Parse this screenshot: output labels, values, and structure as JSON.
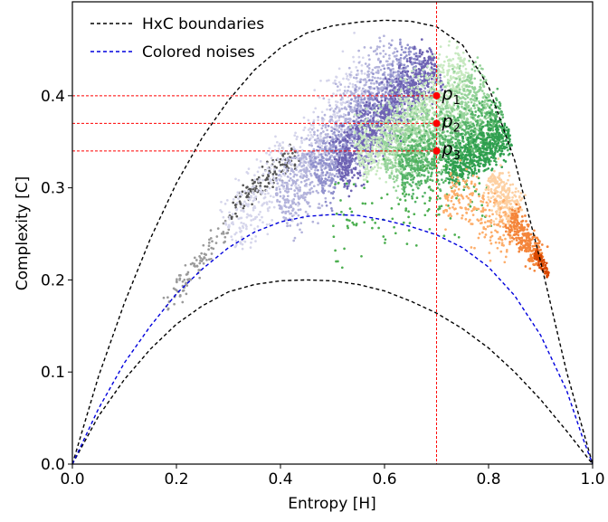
{
  "chart_data": {
    "type": "scatter",
    "title": "",
    "xlabel": "Entropy [H]",
    "ylabel": "Complexity [C]",
    "xlim": [
      0.0,
      1.0
    ],
    "ylim": [
      0.0,
      0.5
    ],
    "xticks": [
      0.0,
      0.2,
      0.4,
      0.6,
      0.8,
      1.0
    ],
    "yticks": [
      0.0,
      0.1,
      0.2,
      0.3,
      0.4
    ],
    "xtick_labels": [
      "0.0",
      "0.2",
      "0.4",
      "0.6",
      "0.8",
      "1.0"
    ],
    "ytick_labels": [
      "0.0",
      "0.1",
      "0.2",
      "0.3",
      "0.4"
    ],
    "grid": false,
    "legend": {
      "placement": "top-left",
      "entries": [
        {
          "label": "HxC boundaries",
          "color": "#000000",
          "style": "dashed"
        },
        {
          "label": "Colored noises",
          "color": "#0000dd",
          "style": "dashed"
        }
      ]
    },
    "upper_boundary": {
      "x": [
        0.0,
        0.05,
        0.1,
        0.15,
        0.2,
        0.25,
        0.3,
        0.35,
        0.4,
        0.45,
        0.5,
        0.55,
        0.6,
        0.65,
        0.7,
        0.75,
        0.8,
        0.85,
        0.9,
        0.95,
        0.98,
        1.0
      ],
      "y": [
        0.0,
        0.095,
        0.175,
        0.245,
        0.305,
        0.355,
        0.395,
        0.428,
        0.452,
        0.468,
        0.476,
        0.48,
        0.482,
        0.481,
        0.475,
        0.455,
        0.41,
        0.33,
        0.22,
        0.1,
        0.04,
        0.0
      ]
    },
    "lower_boundary": {
      "x": [
        0.0,
        0.05,
        0.1,
        0.15,
        0.2,
        0.25,
        0.3,
        0.35,
        0.4,
        0.45,
        0.5,
        0.55,
        0.6,
        0.65,
        0.7,
        0.75,
        0.8,
        0.85,
        0.9,
        0.95,
        1.0
      ],
      "y": [
        0.0,
        0.052,
        0.092,
        0.125,
        0.152,
        0.172,
        0.187,
        0.195,
        0.199,
        0.2,
        0.199,
        0.195,
        0.188,
        0.177,
        0.164,
        0.147,
        0.126,
        0.1,
        0.07,
        0.036,
        0.0
      ]
    },
    "colored_noise_curve": {
      "x": [
        0.0,
        0.05,
        0.1,
        0.15,
        0.2,
        0.25,
        0.3,
        0.35,
        0.4,
        0.45,
        0.5,
        0.55,
        0.6,
        0.65,
        0.7,
        0.75,
        0.8,
        0.85,
        0.9,
        0.95,
        0.98,
        1.0
      ],
      "y": [
        0.0,
        0.06,
        0.11,
        0.15,
        0.185,
        0.212,
        0.235,
        0.252,
        0.263,
        0.269,
        0.271,
        0.27,
        0.265,
        0.258,
        0.249,
        0.235,
        0.214,
        0.183,
        0.14,
        0.08,
        0.03,
        0.0
      ]
    },
    "reference_line": {
      "x": 0.7,
      "color": "#ff0000"
    },
    "points": [
      {
        "label": "p",
        "sub": "1",
        "x": 0.7,
        "y": 0.4
      },
      {
        "label": "p",
        "sub": "2",
        "x": 0.7,
        "y": 0.37
      },
      {
        "label": "p",
        "sub": "3",
        "x": 0.7,
        "y": 0.34
      }
    ],
    "scatter_clusters": [
      {
        "color": "#555555",
        "x0": 0.3,
        "y0": 0.27,
        "x1": 0.43,
        "y1": 0.34,
        "width": 0.022,
        "n": 140
      },
      {
        "color": "#9a9a9a",
        "x0": 0.18,
        "y0": 0.17,
        "x1": 0.3,
        "y1": 0.26,
        "width": 0.018,
        "n": 100
      },
      {
        "color": "#d5d5eb",
        "x0": 0.3,
        "y0": 0.25,
        "x1": 0.57,
        "y1": 0.425,
        "width": 0.06,
        "n": 450
      },
      {
        "color": "#b3b3db",
        "x0": 0.4,
        "y0": 0.275,
        "x1": 0.63,
        "y1": 0.44,
        "width": 0.06,
        "n": 900
      },
      {
        "color": "#9090cc",
        "x0": 0.47,
        "y0": 0.305,
        "x1": 0.67,
        "y1": 0.44,
        "width": 0.05,
        "n": 700
      },
      {
        "color": "#6e63b3",
        "x0": 0.51,
        "y0": 0.32,
        "x1": 0.7,
        "y1": 0.435,
        "width": 0.045,
        "n": 900
      },
      {
        "color": "#c7e9c0",
        "x0": 0.55,
        "y0": 0.33,
        "x1": 0.76,
        "y1": 0.43,
        "width": 0.055,
        "n": 900
      },
      {
        "color": "#96d39a",
        "x0": 0.6,
        "y0": 0.325,
        "x1": 0.8,
        "y1": 0.405,
        "width": 0.055,
        "n": 900
      },
      {
        "color": "#55b368",
        "x0": 0.63,
        "y0": 0.32,
        "x1": 0.83,
        "y1": 0.37,
        "width": 0.05,
        "n": 800
      },
      {
        "color": "#2f9f4f",
        "x0": 0.72,
        "y0": 0.315,
        "x1": 0.84,
        "y1": 0.36,
        "width": 0.035,
        "n": 500
      },
      {
        "color": "#4caf50",
        "x0": 0.5,
        "y0": 0.265,
        "x1": 0.8,
        "y1": 0.3,
        "width": 0.07,
        "n": 130
      },
      {
        "color": "#fdd0a2",
        "x0": 0.8,
        "y0": 0.31,
        "x1": 0.86,
        "y1": 0.27,
        "width": 0.035,
        "n": 260
      },
      {
        "color": "#fdae6b",
        "x0": 0.72,
        "y0": 0.3,
        "x1": 0.85,
        "y1": 0.245,
        "width": 0.05,
        "n": 220
      },
      {
        "color": "#f4853a",
        "x0": 0.84,
        "y0": 0.27,
        "x1": 0.9,
        "y1": 0.22,
        "width": 0.025,
        "n": 260
      },
      {
        "color": "#d94801",
        "x0": 0.89,
        "y0": 0.23,
        "x1": 0.915,
        "y1": 0.205,
        "width": 0.01,
        "n": 80
      }
    ]
  }
}
